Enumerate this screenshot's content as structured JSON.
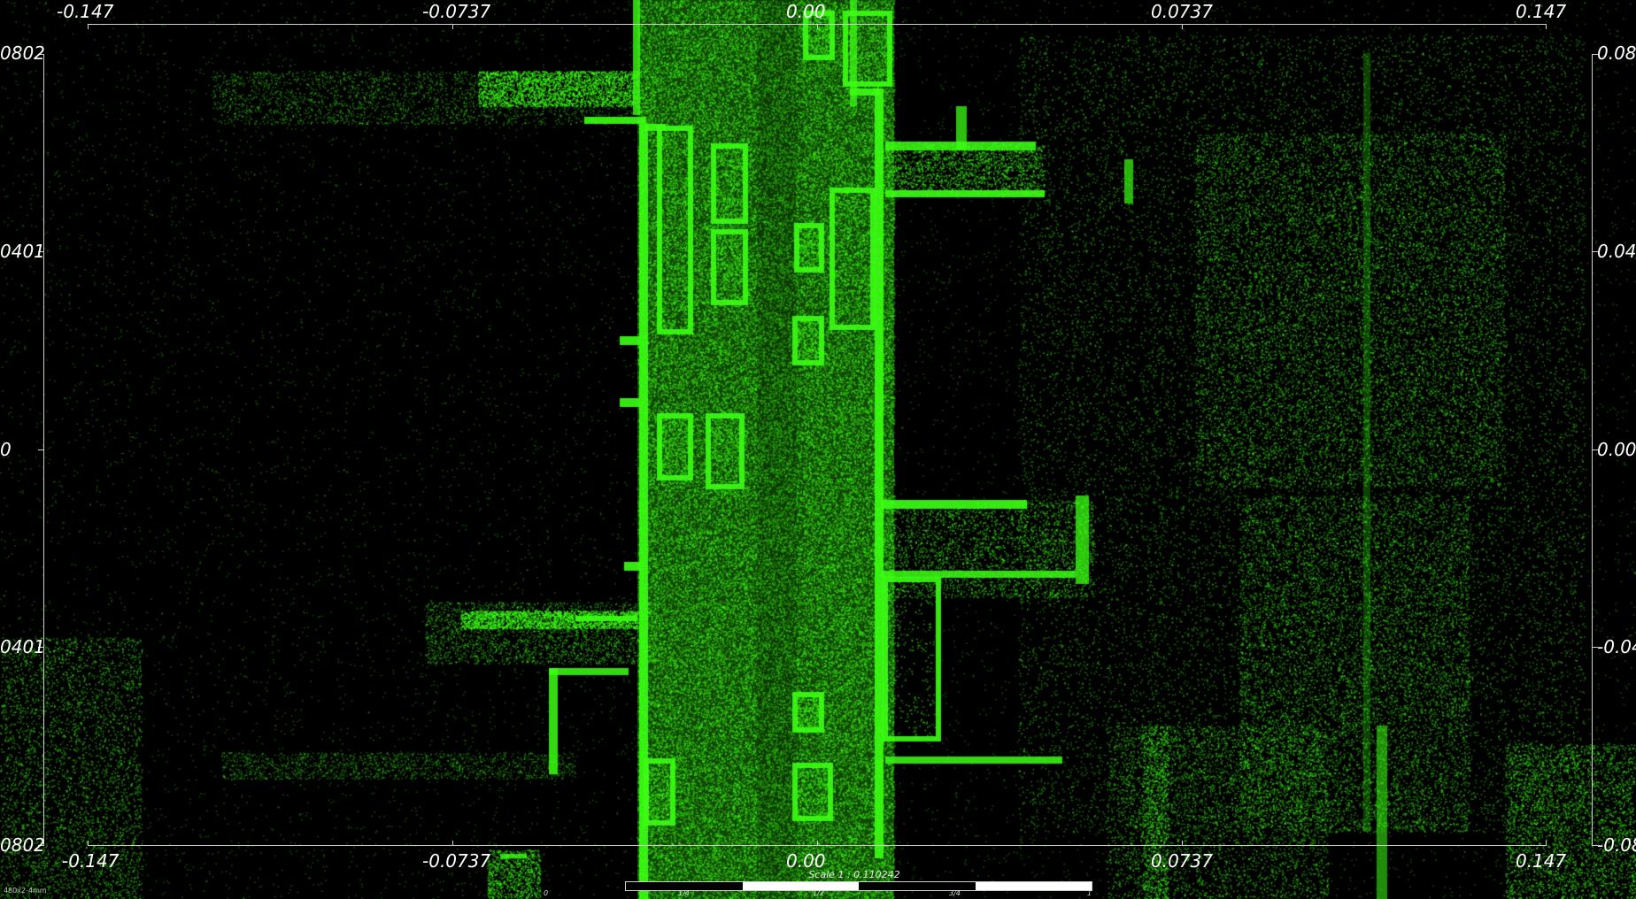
{
  "viewer": {
    "background_color": "#000000",
    "point_color": "#33ff00",
    "axis_color": "#cfcfcf",
    "label_color": "#ffffff"
  },
  "axes": {
    "top_ticks": [
      "-0.147",
      "-0.0737",
      "0.00",
      "0.0737",
      "0.147"
    ],
    "bottom_ticks": [
      "-0.147",
      "-0.0737",
      "0.00",
      "0.0737",
      "0.147"
    ],
    "left_ticks": [
      "0802",
      "0401",
      "0",
      "0401",
      "0802"
    ],
    "right_ticks": [
      "0.080",
      "0.040",
      "0.00",
      "-0.04",
      "-0.08"
    ]
  },
  "scale": {
    "title": "Scale 1 : 0.110242",
    "marks": [
      "0",
      "1/4",
      "1/2",
      "3/4",
      "1"
    ]
  },
  "status_text": "480x2-4mm"
}
